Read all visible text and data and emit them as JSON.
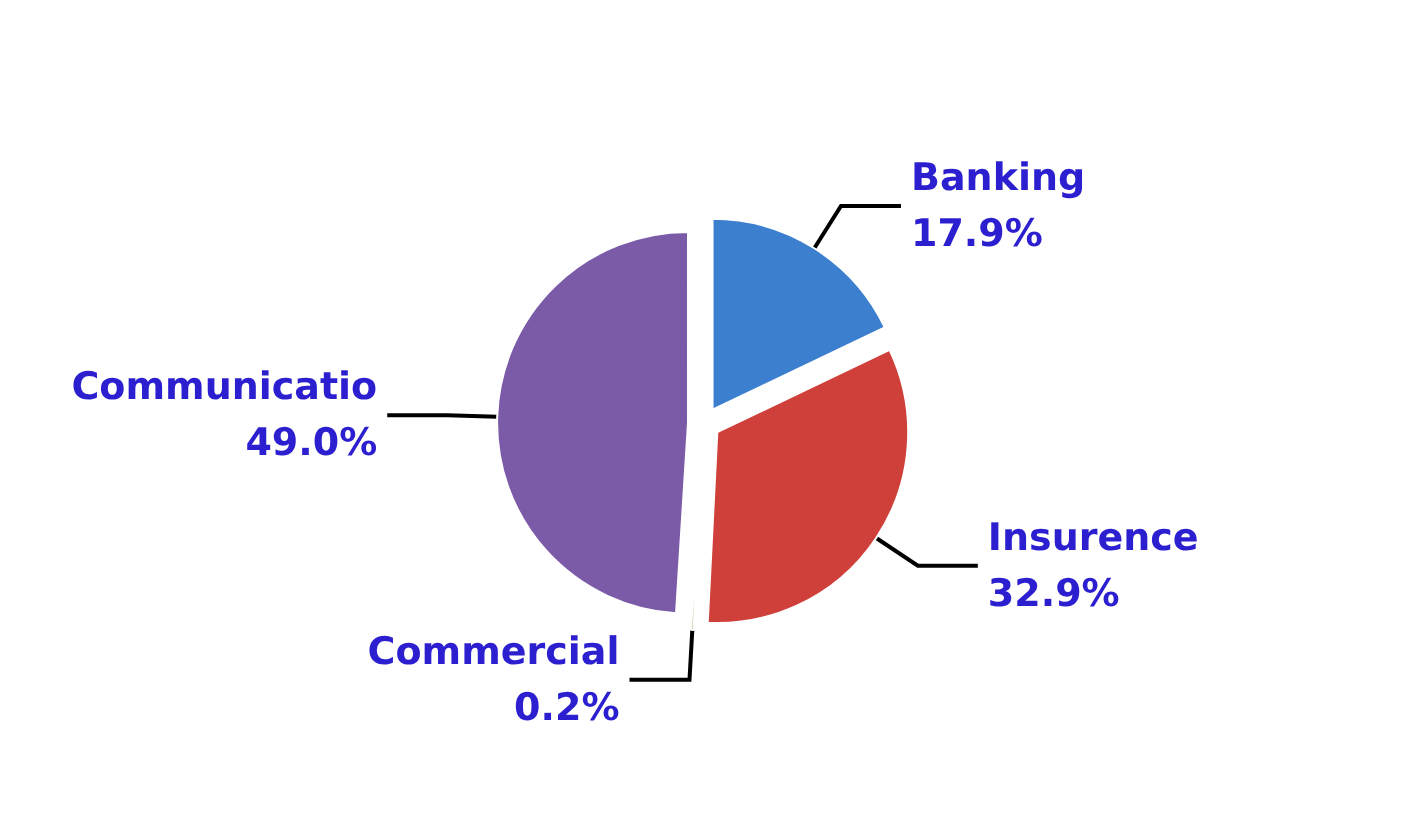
{
  "chart_data": {
    "type": "pie",
    "categories": [
      "Banking",
      "Insurence",
      "Commercial",
      "Communicatio"
    ],
    "values": [
      17.9,
      32.9,
      0.2,
      49.0
    ],
    "colors": [
      "#3d7fcf",
      "#d0403a",
      "#7a9a3a",
      "#7b5aa8"
    ],
    "value_labels": [
      "17.9%",
      "32.9%",
      "0.2%",
      "49.0%"
    ],
    "legend": false
  }
}
